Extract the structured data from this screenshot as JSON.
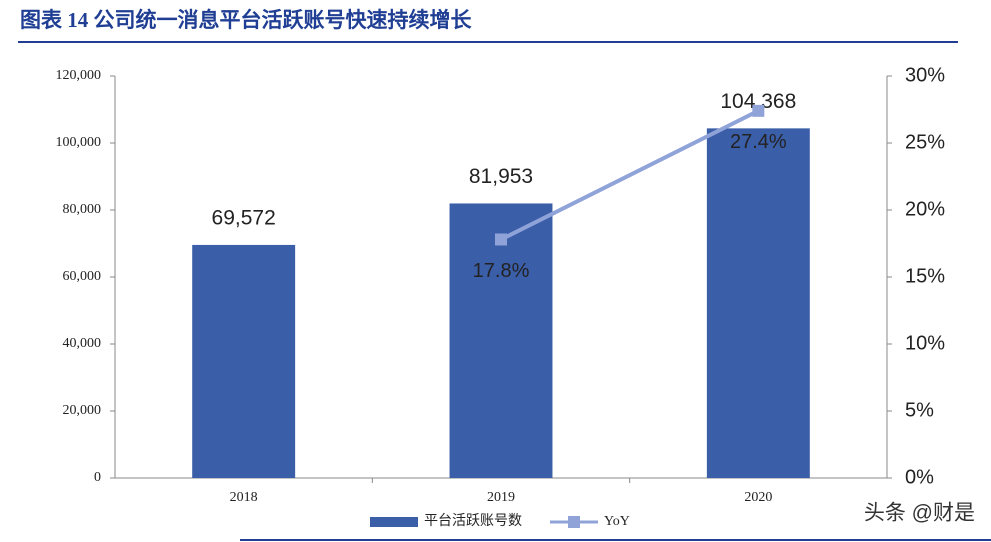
{
  "chart_data": {
    "type": "bar",
    "title": "图表 14   公司统一消息平台活跃账号快速持续增长",
    "categories": [
      "2018",
      "2019",
      "2020"
    ],
    "series": [
      {
        "name": "平台活跃账号数",
        "type": "bar",
        "color": "#3b5ea8",
        "values": [
          69572,
          81953,
          104368
        ],
        "value_labels": [
          "69,572",
          "81,953",
          "104,368"
        ]
      },
      {
        "name": "YoY",
        "type": "line",
        "axis": "y2",
        "color": "#8fa3d8",
        "values": [
          null,
          17.8,
          27.4
        ],
        "value_labels": [
          null,
          "17.8%",
          "27.4%"
        ]
      }
    ],
    "ylim": [
      0,
      120000
    ],
    "yticks": [
      {
        "value": 0,
        "label": "0"
      },
      {
        "value": 20000,
        "label": "20,000"
      },
      {
        "value": 40000,
        "label": "40,000"
      },
      {
        "value": 60000,
        "label": "60,000"
      },
      {
        "value": 80000,
        "label": "80,000"
      },
      {
        "value": 100000,
        "label": "100,000"
      },
      {
        "value": 120000,
        "label": "120,000"
      }
    ],
    "y2lim": [
      0,
      30
    ],
    "y2ticks": [
      {
        "value": 0,
        "label": "0%"
      },
      {
        "value": 5,
        "label": "5%"
      },
      {
        "value": 10,
        "label": "10%"
      },
      {
        "value": 15,
        "label": "15%"
      },
      {
        "value": 20,
        "label": "20%"
      },
      {
        "value": 25,
        "label": "25%"
      },
      {
        "value": 30,
        "label": "30%"
      }
    ],
    "grid": false,
    "legend": "bottom",
    "watermark": "头条 @财是"
  }
}
